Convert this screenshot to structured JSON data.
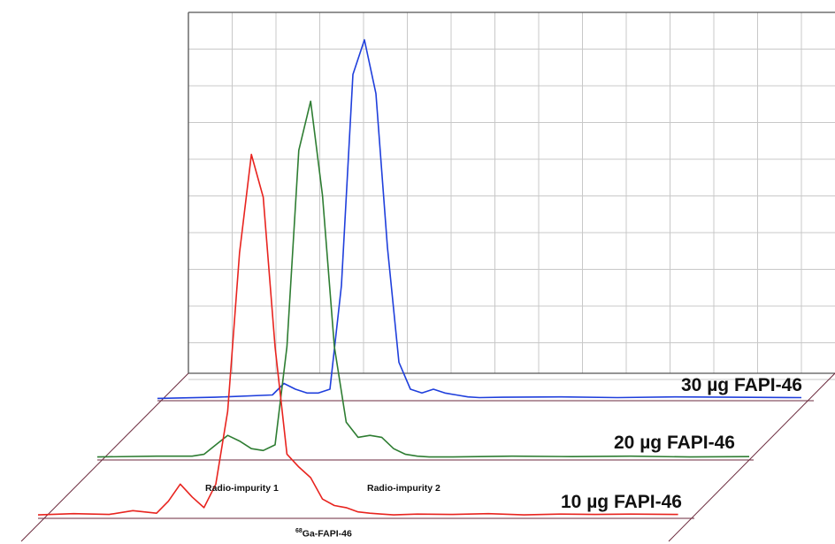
{
  "chart_data": {
    "type": "line",
    "title": "",
    "xlabel": "",
    "ylabel": "",
    "grid": true,
    "projection": "3d-waterfall",
    "series": [
      {
        "name": "10 µg FAPI-46",
        "color": "#e8241f",
        "x": [
          0,
          3,
          6,
          8,
          10,
          11,
          12,
          13,
          14,
          15,
          16,
          17,
          18,
          19,
          20,
          21,
          22,
          23,
          24,
          25,
          26,
          27,
          28,
          29,
          30,
          32,
          35,
          38,
          41,
          44,
          47,
          50,
          54
        ],
        "y": [
          0.8,
          1.1,
          0.9,
          1.8,
          1.2,
          4,
          8,
          5,
          2.5,
          8,
          25,
          62,
          85,
          75,
          40,
          15,
          12,
          9.5,
          4.5,
          3,
          2.5,
          1.5,
          1.2,
          1,
          0.8,
          1,
          0.9,
          1.1,
          0.8,
          1,
          0.9,
          1,
          0.9
        ]
      },
      {
        "name": "20 µg FAPI-46",
        "color": "#2e7d32",
        "x": [
          0,
          5,
          8,
          9,
          10,
          11,
          12,
          13,
          14,
          15,
          16,
          17,
          18,
          19,
          20,
          21,
          22,
          23,
          24,
          25,
          26,
          27,
          28,
          30,
          35,
          40,
          45,
          50,
          55
        ],
        "y": [
          0.8,
          1,
          1,
          1.5,
          4,
          6.5,
          5,
          3,
          2.5,
          4,
          30,
          82,
          95,
          70,
          30,
          10,
          6,
          6.5,
          6,
          3,
          1.5,
          1,
          0.8,
          0.8,
          1,
          0.9,
          1,
          0.8,
          0.9
        ]
      },
      {
        "name": "30 µg FAPI-46",
        "color": "#1f3fdc",
        "x": [
          0,
          5,
          10,
          11,
          12,
          13,
          14,
          15,
          16,
          17,
          18,
          19,
          20,
          21,
          22,
          23,
          24,
          25,
          26,
          27,
          28,
          30,
          35,
          40,
          45,
          50,
          56
        ],
        "y": [
          0.6,
          0.9,
          1.5,
          4.5,
          3,
          2,
          2,
          3,
          30,
          85,
          94,
          80,
          40,
          10,
          3,
          2,
          3,
          2,
          1.5,
          1,
          0.8,
          0.9,
          1,
          0.8,
          1,
          0.9,
          0.8
        ]
      }
    ],
    "annotations": [
      {
        "text": "Radio-impurity 1",
        "series": 0,
        "x": 11
      },
      {
        "text": "Radio-impurity 2",
        "series": 0,
        "x": 23
      },
      {
        "text_prefix": "68",
        "text": "Ga-FAPI-46",
        "series": 0,
        "x": 18
      }
    ]
  }
}
